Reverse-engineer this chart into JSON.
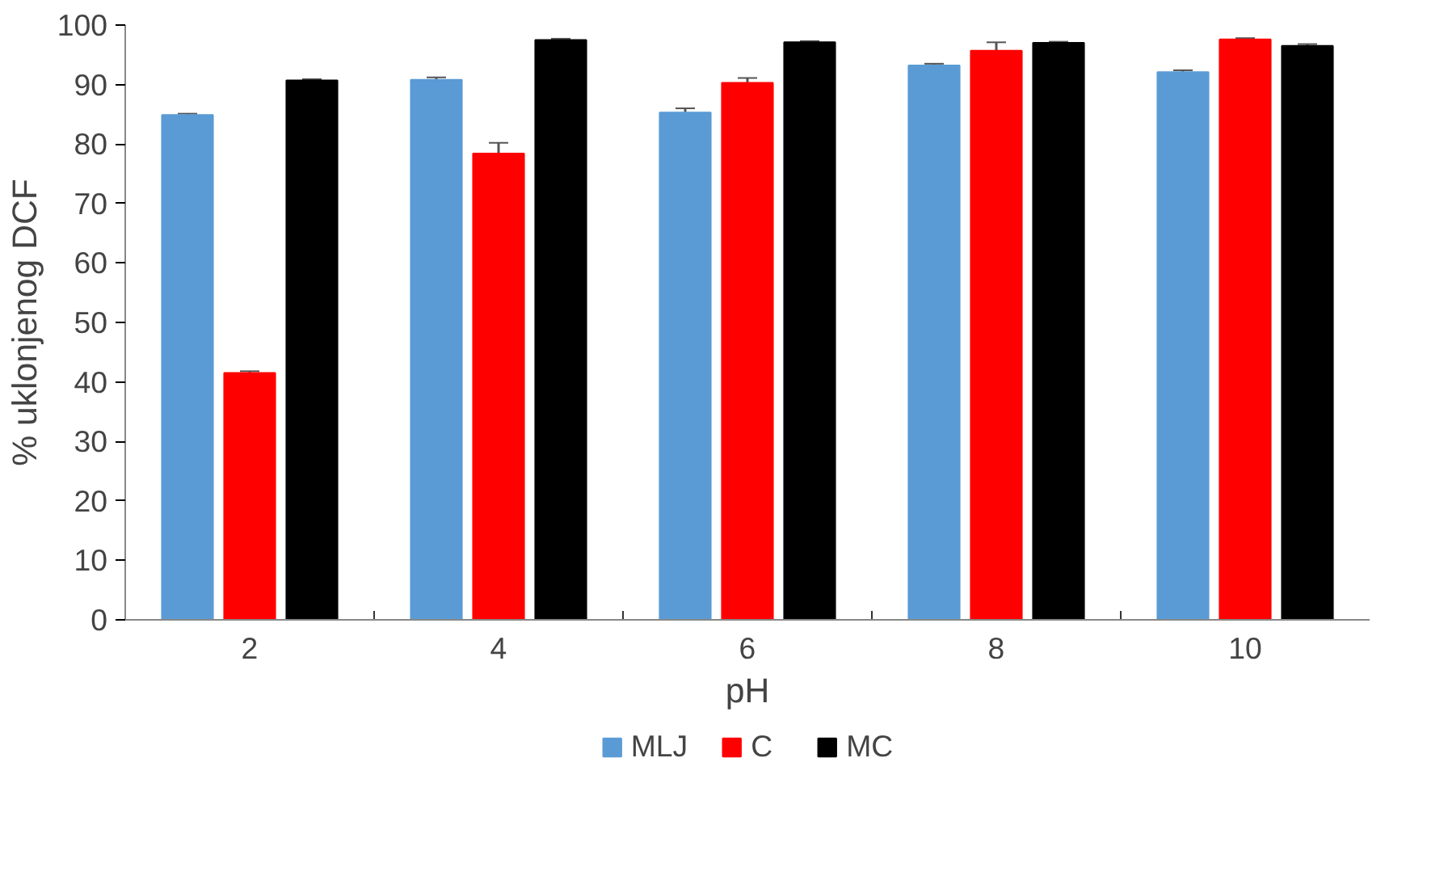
{
  "chart_data": {
    "type": "bar",
    "xlabel": "pH",
    "ylabel": "% uklonjenog DCF",
    "categories": [
      "2",
      "4",
      "6",
      "8",
      "10"
    ],
    "series": [
      {
        "name": "MLJ",
        "color": "#5b9bd5",
        "values": [
          84.9,
          90.8,
          85.3,
          93.2,
          92.1
        ],
        "errors": [
          0.2,
          0.4,
          0.7,
          0.3,
          0.3
        ]
      },
      {
        "name": "C",
        "color": "#ff0000",
        "values": [
          41.5,
          78.4,
          90.3,
          95.7,
          97.6
        ],
        "errors": [
          0.3,
          1.8,
          0.8,
          1.4,
          0.2
        ]
      },
      {
        "name": "MC",
        "color": "#000000",
        "values": [
          90.7,
          97.5,
          97.1,
          97.0,
          96.5
        ],
        "errors": [
          0.2,
          0.2,
          0.2,
          0.2,
          0.3
        ]
      }
    ],
    "ylim": [
      0,
      100
    ],
    "yticks": [
      0,
      10,
      20,
      30,
      40,
      50,
      60,
      70,
      80,
      90,
      100
    ],
    "grid": false,
    "legend": "bottom"
  }
}
